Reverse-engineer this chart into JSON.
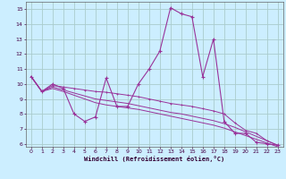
{
  "xlabel": "Windchill (Refroidissement éolien,°C)",
  "background_color": "#cceeff",
  "grid_color": "#aacccc",
  "line_color": "#993399",
  "x_values": [
    0,
    1,
    2,
    3,
    4,
    5,
    6,
    7,
    8,
    9,
    10,
    11,
    12,
    13,
    14,
    15,
    16,
    17,
    18,
    19,
    20,
    21,
    22,
    23
  ],
  "series1": [
    10.5,
    9.5,
    10.0,
    9.7,
    8.0,
    7.5,
    7.8,
    10.4,
    8.5,
    8.5,
    10.0,
    11.0,
    12.2,
    15.1,
    14.7,
    14.5,
    10.5,
    13.0,
    7.5,
    6.7,
    6.7,
    6.1,
    6.0,
    5.9
  ],
  "series2": [
    10.5,
    9.5,
    9.9,
    9.8,
    9.7,
    9.6,
    9.5,
    9.45,
    9.35,
    9.25,
    9.15,
    9.0,
    8.85,
    8.7,
    8.6,
    8.5,
    8.35,
    8.2,
    8.0,
    7.4,
    6.9,
    6.7,
    6.2,
    5.9
  ],
  "series3": [
    10.5,
    9.5,
    9.8,
    9.6,
    9.4,
    9.2,
    9.0,
    8.9,
    8.8,
    8.7,
    8.55,
    8.4,
    8.25,
    8.1,
    8.0,
    7.85,
    7.7,
    7.55,
    7.35,
    7.1,
    6.8,
    6.5,
    6.2,
    5.9
  ],
  "series4": [
    10.5,
    9.5,
    9.7,
    9.5,
    9.25,
    9.0,
    8.75,
    8.6,
    8.5,
    8.4,
    8.3,
    8.15,
    8.0,
    7.85,
    7.7,
    7.55,
    7.4,
    7.25,
    7.05,
    6.8,
    6.55,
    6.3,
    6.05,
    5.8
  ],
  "ylim": [
    5.8,
    15.5
  ],
  "xlim": [
    -0.5,
    23.5
  ],
  "yticks": [
    6,
    7,
    8,
    9,
    10,
    11,
    12,
    13,
    14,
    15
  ],
  "xticks": [
    0,
    1,
    2,
    3,
    4,
    5,
    6,
    7,
    8,
    9,
    10,
    11,
    12,
    13,
    14,
    15,
    16,
    17,
    18,
    19,
    20,
    21,
    22,
    23
  ]
}
